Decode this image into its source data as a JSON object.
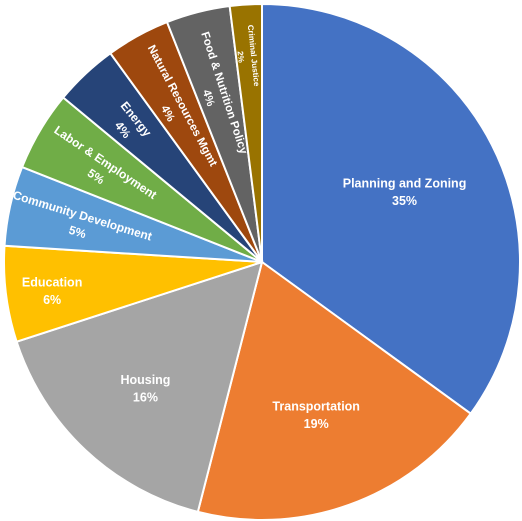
{
  "chart_data": {
    "type": "pie",
    "title": "",
    "legend": "none",
    "start_angle": "12 o'clock",
    "direction": "clockwise",
    "slices": [
      {
        "label": "Planning and Zoning",
        "percent_label": "35%",
        "value": 35,
        "color": "#4472C4"
      },
      {
        "label": "Transportation",
        "percent_label": "19%",
        "value": 19,
        "color": "#ED7D31"
      },
      {
        "label": "Housing",
        "percent_label": "16%",
        "value": 16,
        "color": "#A5A5A5"
      },
      {
        "label": "Education",
        "percent_label": "6%",
        "value": 6,
        "color": "#FFC000"
      },
      {
        "label": "Community Development",
        "percent_label": "5%",
        "value": 5,
        "color": "#5B9BD5"
      },
      {
        "label": "Labor & Employment",
        "percent_label": "5%",
        "value": 5,
        "color": "#70AD47"
      },
      {
        "label": "Energy",
        "percent_label": "4%",
        "value": 4,
        "color": "#264478"
      },
      {
        "label": "Natural Resources Mgmt",
        "percent_label": "4%",
        "value": 4,
        "color": "#9E480E"
      },
      {
        "label": "Food & Nutrition Policy",
        "percent_label": "4%",
        "value": 4,
        "color": "#636363"
      },
      {
        "label": "Criminal Justice",
        "percent_label": "2%",
        "value": 2,
        "color": "#997300"
      }
    ]
  }
}
